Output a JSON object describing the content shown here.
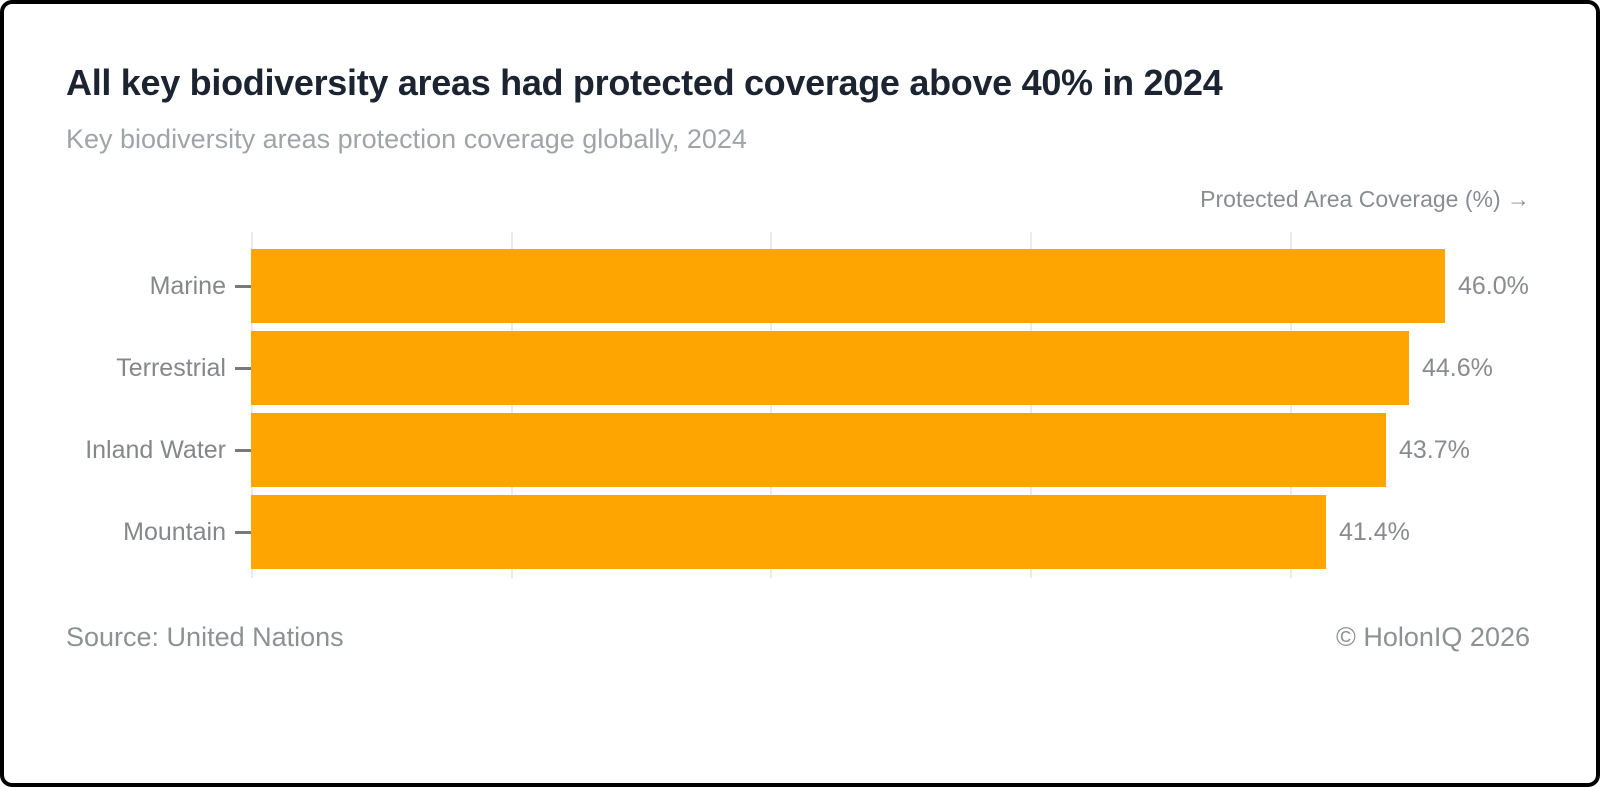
{
  "header": {
    "title": "All key biodiversity areas had protected coverage above 40% in 2024",
    "subtitle": "Key biodiversity areas protection coverage globally, 2024"
  },
  "chart_data": {
    "type": "bar",
    "orientation": "horizontal",
    "title": "All key biodiversity areas had protected coverage above 40% in 2024",
    "subtitle": "Key biodiversity areas protection coverage globally, 2024",
    "categories": [
      "Marine",
      "Terrestrial",
      "Inland Water",
      "Mountain"
    ],
    "values": [
      46.0,
      44.6,
      43.7,
      41.4
    ],
    "value_labels": [
      "46.0%",
      "44.6%",
      "43.7%",
      "41.4%"
    ],
    "xlabel": "Protected Area Coverage (%) →",
    "ylabel": "",
    "xlim": [
      0,
      48.3
    ],
    "gridlines_x": [
      0,
      10,
      20,
      30,
      40
    ],
    "grid": true,
    "legend": false,
    "bar_color": "#FFA502"
  },
  "footer": {
    "source": "Source: United Nations",
    "copyright": "© HolonIQ 2026"
  },
  "colors": {
    "title": "#1C2431",
    "subtitle": "#A0A3A8",
    "axis_label": "#898C91",
    "category_label": "#85878B",
    "value_label": "#898B8F",
    "gridline": "#EBEBED",
    "tick": "#77797D",
    "bar": "#FFA502",
    "footer_text": "#8E9194",
    "background": "#FFFFFF",
    "border": "#000000"
  }
}
